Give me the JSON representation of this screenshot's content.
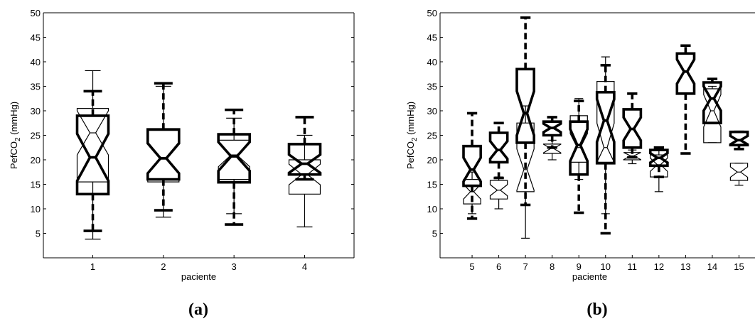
{
  "chart_data": [
    {
      "type": "boxplot",
      "panel_label": "(a)",
      "xlabel": "paciente",
      "ylabel_base": "PefCO",
      "ylabel_sub": "2",
      "ylabel_unit": " (mmHg)",
      "ylim": [
        0,
        50
      ],
      "yticks": [
        5,
        10,
        15,
        20,
        25,
        30,
        35,
        40,
        45,
        50
      ],
      "xlim": [
        0.3,
        4.7
      ],
      "grid": false,
      "categories": [
        "1",
        "2",
        "3",
        "4"
      ],
      "series": [
        {
          "style": "thin",
          "boxes": [
            {
              "x": 1,
              "whisker_low": 3.8,
              "q1": 15.5,
              "median": 25.5,
              "q3": 30.5,
              "whisker_high": 38.2
            },
            {
              "x": 2,
              "whisker_low": 8.3,
              "q1": 15.5,
              "median": 20.5,
              "q3": 26.0,
              "whisker_high": 35.0
            },
            {
              "x": 3,
              "whisker_low": 9.0,
              "q1": 16.0,
              "median": 21.0,
              "q3": 24.0,
              "whisker_high": 28.5
            },
            {
              "x": 4,
              "whisker_low": 6.3,
              "q1": 13.0,
              "median": 17.0,
              "q3": 20.0,
              "whisker_high": 25.0
            }
          ]
        },
        {
          "style": "thick-dashed",
          "boxes": [
            {
              "x": 1,
              "whisker_low": 5.5,
              "q1": 13.0,
              "median": 20.5,
              "q3": 29.0,
              "whisker_high": 34.0
            },
            {
              "x": 2,
              "whisker_low": 9.7,
              "q1": 16.0,
              "median": 20.3,
              "q3": 26.2,
              "whisker_high": 35.6
            },
            {
              "x": 3,
              "whisker_low": 6.8,
              "q1": 15.4,
              "median": 20.7,
              "q3": 25.2,
              "whisker_high": 30.2
            },
            {
              "x": 4,
              "whisker_low": 16.0,
              "q1": 17.0,
              "median": 19.2,
              "q3": 23.2,
              "whisker_high": 28.7
            }
          ]
        }
      ]
    },
    {
      "type": "boxplot",
      "panel_label": "(b)",
      "xlabel": "paciente",
      "ylabel_base": "PefCO",
      "ylabel_sub": "2",
      "ylabel_unit": " (mmHg)",
      "ylim": [
        0,
        50
      ],
      "yticks": [
        5,
        10,
        15,
        20,
        25,
        30,
        35,
        40,
        45,
        50
      ],
      "xlim": [
        3.8,
        15.6
      ],
      "grid": false,
      "categories": [
        "5",
        "6",
        "7",
        "8",
        "9",
        "10",
        "11",
        "12",
        "13",
        "14",
        "15"
      ],
      "series": [
        {
          "style": "thin",
          "boxes": [
            {
              "x": 5,
              "whisker_low": 9.0,
              "q1": 11.0,
              "median": 13.5,
              "q3": 16.0,
              "whisker_high": 17.5
            },
            {
              "x": 6,
              "whisker_low": 10.0,
              "q1": 12.0,
              "median": 13.8,
              "q3": 15.8,
              "whisker_high": 16.5
            },
            {
              "x": 7,
              "whisker_low": 4.0,
              "q1": 13.5,
              "median": 18.0,
              "q3": 27.5,
              "whisker_high": 31.0
            },
            {
              "x": 8,
              "whisker_low": 20.0,
              "q1": 21.3,
              "median": 22.3,
              "q3": 23.2,
              "whisker_high": 24.0
            },
            {
              "x": 9,
              "whisker_low": 16.0,
              "q1": 19.5,
              "median": 22.5,
              "q3": 29.0,
              "whisker_high": 32.5
            },
            {
              "x": 10,
              "whisker_low": 9.0,
              "q1": 19.5,
              "median": 22.5,
              "q3": 36.0,
              "whisker_high": 41.0
            },
            {
              "x": 11,
              "whisker_low": 19.2,
              "q1": 20.0,
              "median": 20.8,
              "q3": 21.5,
              "whisker_high": 22.0
            },
            {
              "x": 12,
              "whisker_low": 13.5,
              "q1": 16.5,
              "median": 19.0,
              "q3": 21.0,
              "whisker_high": 22.5
            },
            {
              "x": 14,
              "whisker_low": 23.5,
              "q1": 23.5,
              "median": 30.0,
              "q3": 34.5,
              "whisker_high": 35.0
            },
            {
              "x": 15,
              "whisker_low": 14.8,
              "q1": 15.8,
              "median": 17.5,
              "q3": 19.3,
              "whisker_high": 19.3
            }
          ]
        },
        {
          "style": "thick-dashed",
          "boxes": [
            {
              "x": 5,
              "whisker_low": 8.0,
              "q1": 14.7,
              "median": 18.0,
              "q3": 22.8,
              "whisker_high": 29.5
            },
            {
              "x": 6,
              "whisker_low": 16.3,
              "q1": 19.5,
              "median": 22.0,
              "q3": 25.5,
              "whisker_high": 27.5
            },
            {
              "x": 7,
              "whisker_low": 10.8,
              "q1": 23.5,
              "median": 29.5,
              "q3": 38.5,
              "whisker_high": 49.0
            },
            {
              "x": 8,
              "whisker_low": 22.5,
              "q1": 25.0,
              "median": 26.5,
              "q3": 27.8,
              "whisker_high": 28.7
            },
            {
              "x": 9,
              "whisker_low": 9.2,
              "q1": 17.0,
              "median": 23.0,
              "q3": 27.8,
              "whisker_high": 32.0
            },
            {
              "x": 10,
              "whisker_low": 5.0,
              "q1": 19.3,
              "median": 28.0,
              "q3": 33.8,
              "whisker_high": 39.3
            },
            {
              "x": 11,
              "whisker_low": 20.5,
              "q1": 22.5,
              "median": 26.3,
              "q3": 30.3,
              "whisker_high": 33.5
            },
            {
              "x": 12,
              "whisker_low": 16.5,
              "q1": 18.8,
              "median": 20.4,
              "q3": 22.0,
              "whisker_high": 22.5
            },
            {
              "x": 13,
              "whisker_low": 21.3,
              "q1": 33.5,
              "median": 38.0,
              "q3": 41.7,
              "whisker_high": 43.3
            },
            {
              "x": 14,
              "whisker_low": 27.5,
              "q1": 27.5,
              "median": 32.5,
              "q3": 35.8,
              "whisker_high": 36.5
            },
            {
              "x": 15,
              "whisker_low": 22.2,
              "q1": 23.0,
              "median": 24.0,
              "q3": 25.7,
              "whisker_high": 25.7
            }
          ]
        }
      ]
    }
  ]
}
